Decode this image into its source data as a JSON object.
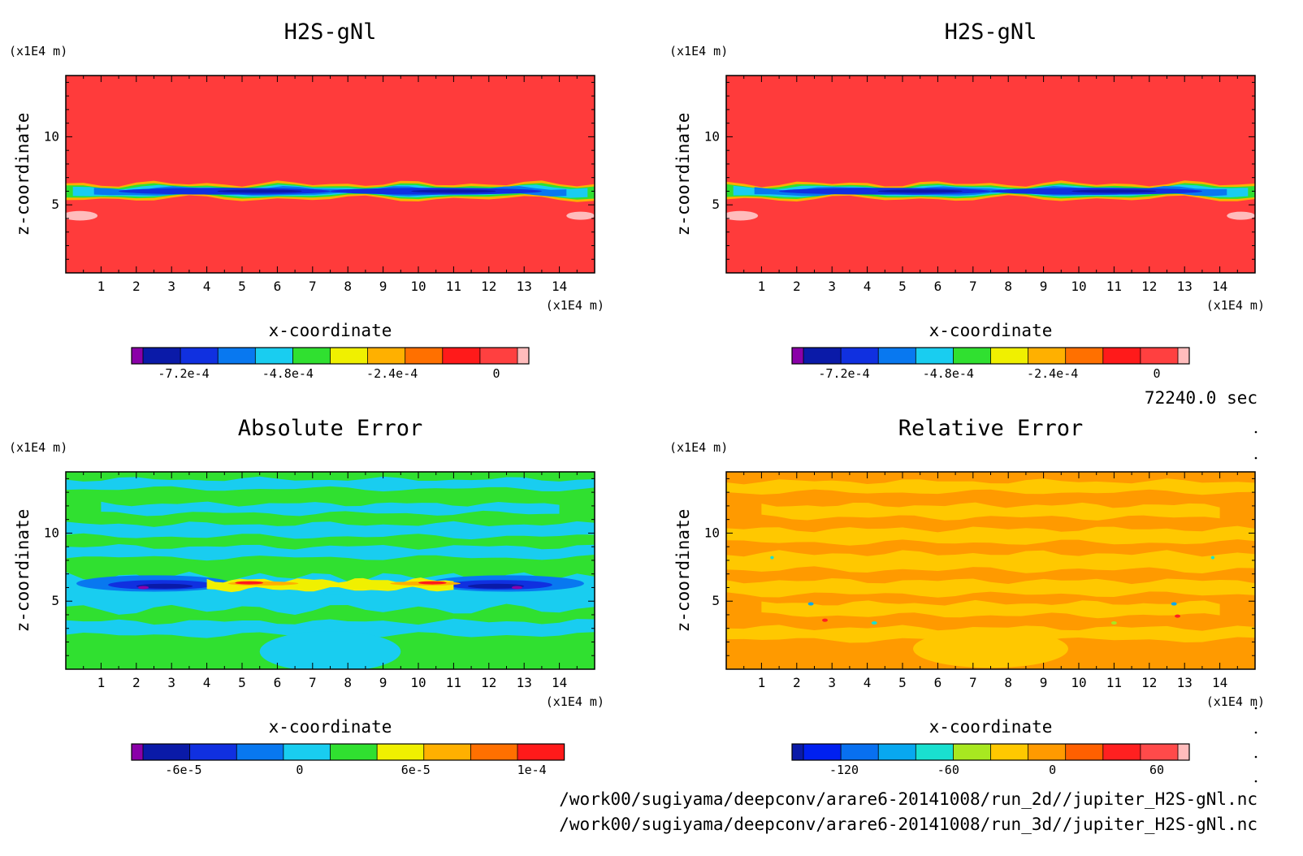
{
  "time_label": "72240.0 sec",
  "source_files": [
    "/work00/sugiyama/deepconv/arare6-20141008/run_2d//jupiter_H2S-gNl.nc",
    "/work00/sugiyama/deepconv/arare6-20141008/run_3d//jupiter_H2S-gNl.nc"
  ],
  "chart_data": [
    {
      "type": "heatmap",
      "title": "H2S-gNl",
      "xlabel": "x-coordinate",
      "ylabel": "z-coordinate",
      "x_unit": "(x1E4 m)",
      "y_unit": "(x1E4 m)",
      "xlim": [
        0,
        15
      ],
      "ylim": [
        0,
        14.5
      ],
      "x_ticks": [
        "1",
        "2",
        "3",
        "4",
        "5",
        "6",
        "7",
        "8",
        "9",
        "10",
        "11",
        "12",
        "13",
        "14"
      ],
      "y_ticks": [
        "5",
        "10"
      ],
      "background": "#ff3b3b",
      "colorbar": {
        "colors": [
          "#8a00a8",
          "#0a1aa8",
          "#1030e0",
          "#0878f0",
          "#19cdf0",
          "#30e030",
          "#f0f000",
          "#ffb000",
          "#ff7000",
          "#ff1a1a",
          "#ff4040",
          "#ffbcbc"
        ],
        "tick_labels": [
          "-7.2e-4",
          "-4.8e-4",
          "-2.4e-4",
          "0"
        ]
      },
      "features": [
        {
          "kind": "band",
          "x0": 0,
          "x1": 15,
          "z": 6.0,
          "half_width": 0.55,
          "color": "#ffb000"
        },
        {
          "kind": "band",
          "x0": 0,
          "x1": 15,
          "z": 6.0,
          "half_width": 0.4,
          "color": "#30e030"
        },
        {
          "kind": "band",
          "x0": 0.2,
          "x1": 14.8,
          "z": 6.0,
          "half_width": 0.3,
          "color": "#19cdf0"
        },
        {
          "kind": "band",
          "x0": 0.8,
          "x1": 14.2,
          "z": 6.0,
          "half_width": 0.22,
          "color": "#0878f0"
        },
        {
          "kind": "blob",
          "x": 4.5,
          "z": 6.0,
          "rx": 3.0,
          "rz": 0.25,
          "color": "#1030e0"
        },
        {
          "kind": "blob",
          "x": 10.5,
          "z": 6.0,
          "rx": 3.0,
          "rz": 0.25,
          "color": "#1030e0"
        },
        {
          "kind": "blob",
          "x": 5.5,
          "z": 6.0,
          "rx": 1.2,
          "rz": 0.12,
          "color": "#0a1aa8"
        },
        {
          "kind": "blob",
          "x": 11,
          "z": 6.0,
          "rx": 1.2,
          "rz": 0.12,
          "color": "#0a1aa8"
        },
        {
          "kind": "blob",
          "x": 0.4,
          "z": 4.2,
          "rx": 0.5,
          "rz": 0.35,
          "color": "#ffbcbc"
        },
        {
          "kind": "blob",
          "x": 14.6,
          "z": 4.2,
          "rx": 0.4,
          "rz": 0.3,
          "color": "#ffbcbc"
        }
      ]
    },
    {
      "type": "heatmap",
      "title": "H2S-gNl",
      "xlabel": "x-coordinate",
      "ylabel": "z-coordinate",
      "x_unit": "(x1E4 m)",
      "y_unit": "(x1E4 m)",
      "xlim": [
        0,
        15
      ],
      "ylim": [
        0,
        14.5
      ],
      "x_ticks": [
        "1",
        "2",
        "3",
        "4",
        "5",
        "6",
        "7",
        "8",
        "9",
        "10",
        "11",
        "12",
        "13",
        "14"
      ],
      "y_ticks": [
        "5",
        "10"
      ],
      "background": "#ff3b3b",
      "colorbar": {
        "colors": [
          "#8a00a8",
          "#0a1aa8",
          "#1030e0",
          "#0878f0",
          "#19cdf0",
          "#30e030",
          "#f0f000",
          "#ffb000",
          "#ff7000",
          "#ff1a1a",
          "#ff4040",
          "#ffbcbc"
        ],
        "tick_labels": [
          "-7.2e-4",
          "-4.8e-4",
          "-2.4e-4",
          "0"
        ]
      },
      "features": [
        {
          "kind": "band",
          "x0": 0,
          "x1": 15,
          "z": 6.0,
          "half_width": 0.55,
          "color": "#ffb000"
        },
        {
          "kind": "band",
          "x0": 0,
          "x1": 15,
          "z": 6.0,
          "half_width": 0.4,
          "color": "#30e030"
        },
        {
          "kind": "band",
          "x0": 0.2,
          "x1": 14.8,
          "z": 6.0,
          "half_width": 0.3,
          "color": "#19cdf0"
        },
        {
          "kind": "band",
          "x0": 0.8,
          "x1": 14.2,
          "z": 6.0,
          "half_width": 0.22,
          "color": "#0878f0"
        },
        {
          "kind": "blob",
          "x": 4.5,
          "z": 6.0,
          "rx": 3.0,
          "rz": 0.25,
          "color": "#1030e0"
        },
        {
          "kind": "blob",
          "x": 10.5,
          "z": 6.0,
          "rx": 3.0,
          "rz": 0.25,
          "color": "#1030e0"
        },
        {
          "kind": "blob",
          "x": 5.5,
          "z": 6.0,
          "rx": 1.2,
          "rz": 0.12,
          "color": "#0a1aa8"
        },
        {
          "kind": "blob",
          "x": 11,
          "z": 6.0,
          "rx": 1.2,
          "rz": 0.12,
          "color": "#0a1aa8"
        },
        {
          "kind": "blob",
          "x": 0.4,
          "z": 4.2,
          "rx": 0.5,
          "rz": 0.35,
          "color": "#ffbcbc"
        },
        {
          "kind": "blob",
          "x": 14.6,
          "z": 4.2,
          "rx": 0.4,
          "rz": 0.3,
          "color": "#ffbcbc"
        }
      ]
    },
    {
      "type": "heatmap",
      "title": "Absolute Error",
      "xlabel": "x-coordinate",
      "ylabel": "z-coordinate",
      "x_unit": "(x1E4 m)",
      "y_unit": "(x1E4 m)",
      "xlim": [
        0,
        15
      ],
      "ylim": [
        0,
        14.5
      ],
      "x_ticks": [
        "1",
        "2",
        "3",
        "4",
        "5",
        "6",
        "7",
        "8",
        "9",
        "10",
        "11",
        "12",
        "13",
        "14"
      ],
      "y_ticks": [
        "5",
        "10"
      ],
      "background": "#30e030",
      "colorbar": {
        "colors": [
          "#8a00a8",
          "#0a1aa8",
          "#1030e0",
          "#0878f0",
          "#19cdf0",
          "#30e030",
          "#f0f000",
          "#ffb000",
          "#ff7000",
          "#ff1a1a"
        ],
        "tick_labels": [
          "-6e-5",
          "0",
          "6e-5",
          "1e-4"
        ]
      },
      "features": [
        {
          "kind": "band",
          "x0": 0,
          "x1": 15,
          "z": 13.6,
          "half_width": 0.35,
          "color": "#19cdf0"
        },
        {
          "kind": "band",
          "x0": 1,
          "x1": 14,
          "z": 11.8,
          "half_width": 0.35,
          "color": "#19cdf0"
        },
        {
          "kind": "band",
          "x0": 0,
          "x1": 15,
          "z": 10.2,
          "half_width": 0.45,
          "color": "#19cdf0"
        },
        {
          "kind": "band",
          "x0": 0,
          "x1": 15,
          "z": 8.6,
          "half_width": 0.4,
          "color": "#19cdf0"
        },
        {
          "kind": "band",
          "x0": 0,
          "x1": 15,
          "z": 5.6,
          "half_width": 1.2,
          "color": "#19cdf0"
        },
        {
          "kind": "band",
          "x0": 0,
          "x1": 15,
          "z": 3.0,
          "half_width": 0.5,
          "color": "#19cdf0"
        },
        {
          "kind": "blob",
          "x": 7.5,
          "z": 1.3,
          "rx": 2.0,
          "rz": 1.5,
          "color": "#19cdf0"
        },
        {
          "kind": "blob",
          "x": 2.5,
          "z": 6.3,
          "rx": 2.2,
          "rz": 0.6,
          "color": "#0878f0"
        },
        {
          "kind": "blob",
          "x": 12.5,
          "z": 6.3,
          "rx": 2.2,
          "rz": 0.6,
          "color": "#0878f0"
        },
        {
          "kind": "blob",
          "x": 2.7,
          "z": 6.2,
          "rx": 1.5,
          "rz": 0.35,
          "color": "#1030e0"
        },
        {
          "kind": "blob",
          "x": 12.3,
          "z": 6.2,
          "rx": 1.5,
          "rz": 0.35,
          "color": "#1030e0"
        },
        {
          "kind": "blob",
          "x": 2.8,
          "z": 6.1,
          "rx": 0.8,
          "rz": 0.18,
          "color": "#0a1aa8"
        },
        {
          "kind": "blob",
          "x": 12.2,
          "z": 6.1,
          "rx": 0.8,
          "rz": 0.18,
          "color": "#0a1aa8"
        },
        {
          "kind": "blob",
          "x": 2.2,
          "z": 6.0,
          "rx": 0.15,
          "rz": 0.06,
          "color": "#8a00a8"
        },
        {
          "kind": "blob",
          "x": 12.8,
          "z": 6.0,
          "rx": 0.15,
          "rz": 0.06,
          "color": "#8a00a8"
        },
        {
          "kind": "band",
          "x0": 4,
          "x1": 11,
          "z": 6.2,
          "half_width": 0.35,
          "color": "#f0f000"
        },
        {
          "kind": "blob",
          "x": 5.6,
          "z": 6.3,
          "rx": 1.0,
          "rz": 0.15,
          "color": "#ffb000"
        },
        {
          "kind": "blob",
          "x": 10.2,
          "z": 6.3,
          "rx": 1.0,
          "rz": 0.15,
          "color": "#ffb000"
        },
        {
          "kind": "blob",
          "x": 5.2,
          "z": 6.35,
          "rx": 0.4,
          "rz": 0.08,
          "color": "#ff1a1a"
        },
        {
          "kind": "blob",
          "x": 10.4,
          "z": 6.35,
          "rx": 0.4,
          "rz": 0.08,
          "color": "#ff1a1a"
        },
        {
          "kind": "blob",
          "x": 7.6,
          "z": 5.6,
          "rx": 0.3,
          "rz": 0.1,
          "color": "#19cdf0"
        }
      ]
    },
    {
      "type": "heatmap",
      "title": "Relative Error",
      "xlabel": "x-coordinate",
      "ylabel": "z-coordinate",
      "x_unit": "(x1E4 m)",
      "y_unit": "(x1E4 m)",
      "xlim": [
        0,
        15
      ],
      "ylim": [
        0,
        14.5
      ],
      "x_ticks": [
        "1",
        "2",
        "3",
        "4",
        "5",
        "6",
        "7",
        "8",
        "9",
        "10",
        "11",
        "12",
        "13",
        "14"
      ],
      "y_ticks": [
        "5",
        "10"
      ],
      "background": "#ff9a00",
      "colorbar": {
        "colors": [
          "#0a1aa8",
          "#0020f0",
          "#0870f0",
          "#08a8f0",
          "#19e0d0",
          "#a8e820",
          "#ffc800",
          "#ff9a00",
          "#ff6000",
          "#ff2020",
          "#ff4a4a",
          "#ffbcbc"
        ],
        "tick_labels": [
          "-120",
          "-60",
          "0",
          "60"
        ]
      },
      "features": [
        {
          "kind": "band",
          "x0": 0,
          "x1": 15,
          "z": 13.4,
          "half_width": 0.4,
          "color": "#ffc800"
        },
        {
          "kind": "band",
          "x0": 1,
          "x1": 14,
          "z": 11.6,
          "half_width": 0.45,
          "color": "#ffc800"
        },
        {
          "kind": "band",
          "x0": 0,
          "x1": 15,
          "z": 9.8,
          "half_width": 0.5,
          "color": "#ffc800"
        },
        {
          "kind": "band",
          "x0": 0,
          "x1": 15,
          "z": 7.9,
          "half_width": 0.6,
          "color": "#ffc800"
        },
        {
          "kind": "band",
          "x0": 0,
          "x1": 15,
          "z": 6.0,
          "half_width": 0.5,
          "color": "#ffc800"
        },
        {
          "kind": "band",
          "x0": 1,
          "x1": 14,
          "z": 4.4,
          "half_width": 0.45,
          "color": "#ffc800"
        },
        {
          "kind": "band",
          "x0": 0,
          "x1": 15,
          "z": 2.6,
          "half_width": 0.45,
          "color": "#ffc800"
        },
        {
          "kind": "blob",
          "x": 7.5,
          "z": 1.5,
          "rx": 2.2,
          "rz": 1.4,
          "color": "#ffc800"
        },
        {
          "kind": "blob",
          "x": 1.3,
          "z": 8.2,
          "rx": 0.05,
          "rz": 0.05,
          "color": "#19e0d0"
        },
        {
          "kind": "blob",
          "x": 2.4,
          "z": 4.8,
          "rx": 0.08,
          "rz": 0.05,
          "color": "#08a8f0"
        },
        {
          "kind": "blob",
          "x": 12.7,
          "z": 4.8,
          "rx": 0.08,
          "rz": 0.05,
          "color": "#08a8f0"
        },
        {
          "kind": "blob",
          "x": 2.8,
          "z": 3.6,
          "rx": 0.08,
          "rz": 0.05,
          "color": "#ff2020"
        },
        {
          "kind": "blob",
          "x": 4.2,
          "z": 3.4,
          "rx": 0.08,
          "rz": 0.05,
          "color": "#19e0d0"
        },
        {
          "kind": "blob",
          "x": 11,
          "z": 3.4,
          "rx": 0.08,
          "rz": 0.05,
          "color": "#a8e820"
        },
        {
          "kind": "blob",
          "x": 13.8,
          "z": 8.2,
          "rx": 0.05,
          "rz": 0.05,
          "color": "#19e0d0"
        },
        {
          "kind": "blob",
          "x": 12.8,
          "z": 3.9,
          "rx": 0.08,
          "rz": 0.05,
          "color": "#ff2020"
        }
      ]
    }
  ]
}
